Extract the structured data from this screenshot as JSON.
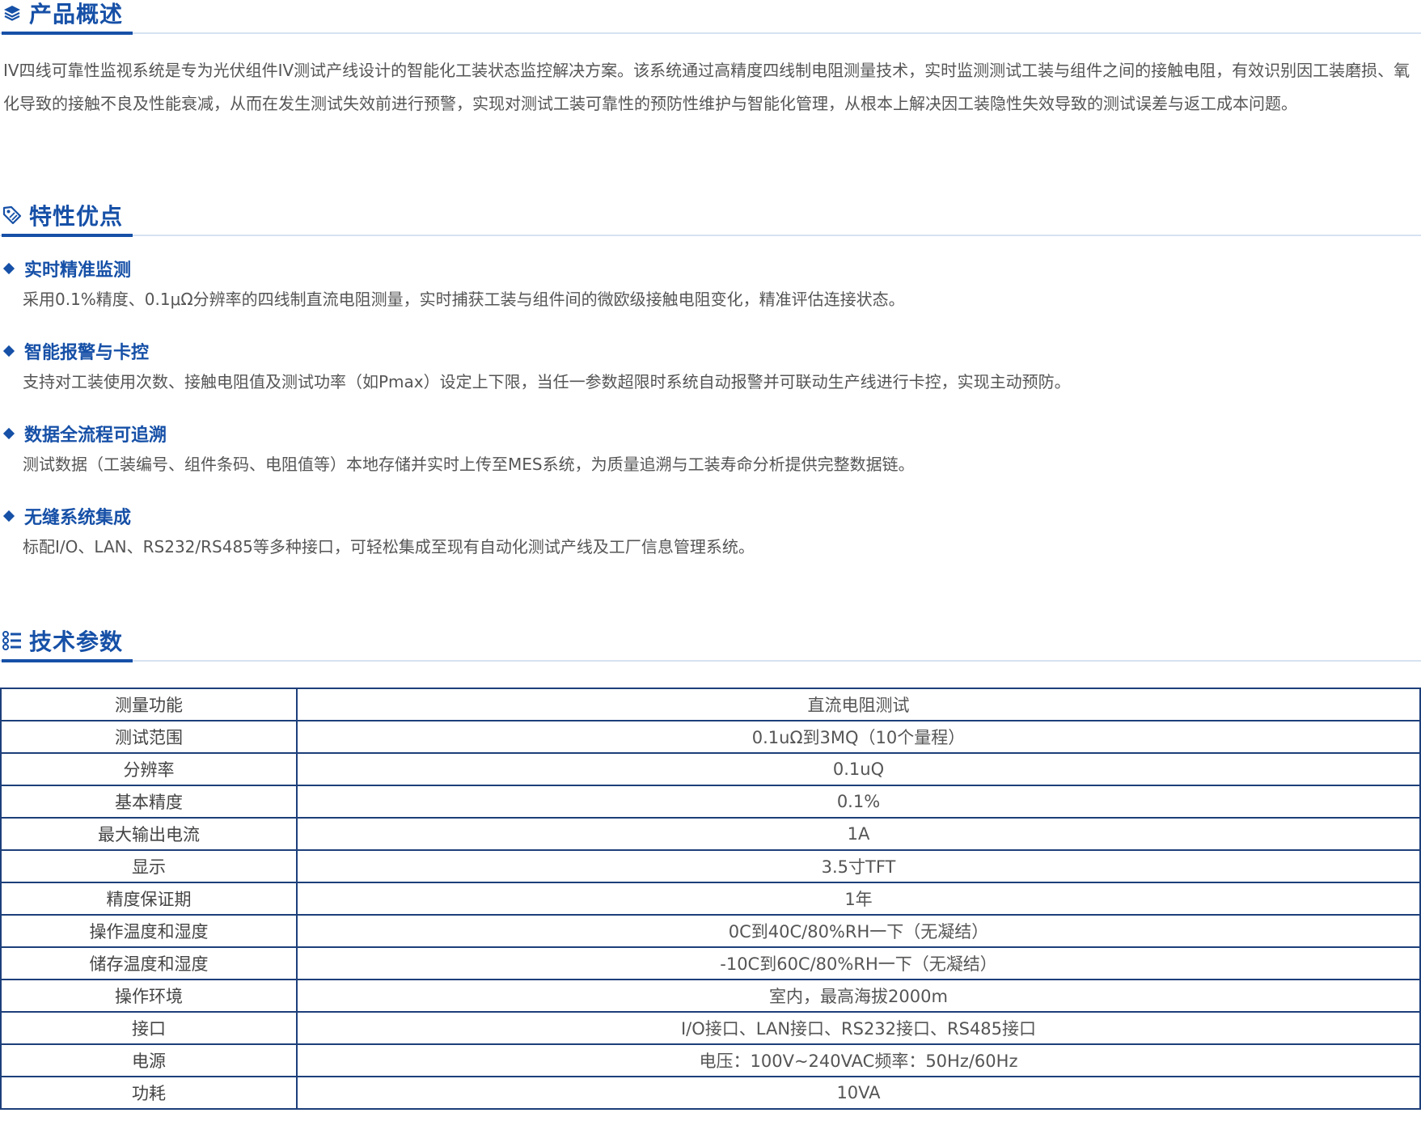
{
  "overview": {
    "title": "产品概述",
    "icon": "layers-icon",
    "text": "IV四线可靠性监视系统是专为光伏组件IV测试产线设计的智能化工装状态监控解决方案。该系统通过高精度四线制电阻测量技术，实时监测测试工装与组件之间的接触电阻，有效识别因工装磨损、氧化导致的接触不良及性能衰减，从而在发生测试失效前进行预警，实现对测试工装可靠性的预防性维护与智能化管理，从根本上解决因工装隐性失效导致的测试误差与返工成本问题。"
  },
  "features": {
    "title": "特性优点",
    "icon": "tag-icon",
    "items": [
      {
        "name": "实时精准监测",
        "desc": "采用0.1%精度、0.1μΩ分辨率的四线制直流电阻测量，实时捕获工装与组件间的微欧级接触电阻变化，精准评估连接状态。"
      },
      {
        "name": "智能报警与卡控",
        "desc": "支持对工装使用次数、接触电阻值及测试功率（如Pmax）设定上下限，当任一参数超限时系统自动报警并可联动生产线进行卡控，实现主动预防。"
      },
      {
        "name": "数据全流程可追溯",
        "desc": "测试数据（工装编号、组件条码、电阻值等）本地存储并实时上传至MES系统，为质量追溯与工装寿命分析提供完整数据链。"
      },
      {
        "name": "无缝系统集成",
        "desc": "标配I/O、LAN、RS232/RS485等多种接口，可轻松集成至现有自动化测试产线及工厂信息管理系统。"
      }
    ]
  },
  "specs": {
    "title": "技术参数",
    "icon": "list-icon",
    "rows": [
      {
        "label": "测量功能",
        "value": "直流电阻测试"
      },
      {
        "label": "测试范围",
        "value": "0.1uΩ到3MQ（10个量程）"
      },
      {
        "label": "分辨率",
        "value": "0.1uQ"
      },
      {
        "label": "基本精度",
        "value": "0.1%"
      },
      {
        "label": "最大输出电流",
        "value": "1A"
      },
      {
        "label": "显示",
        "value": "3.5寸TFT"
      },
      {
        "label": "精度保证期",
        "value": "1年"
      },
      {
        "label": "操作温度和湿度",
        "value": "0C到40C/80%RH一下（无凝结）"
      },
      {
        "label": "储存温度和湿度",
        "value": "-10C到60C/80%RH一下（无凝结）"
      },
      {
        "label": "操作环境",
        "value": "室内，最高海拔2000m"
      },
      {
        "label": "接口",
        "value": "I/O接口、LAN接口、RS232接口、RS485接口"
      },
      {
        "label": "电源",
        "value": "电压：100V~240VAC频率：50Hz/60Hz"
      },
      {
        "label": "功耗",
        "value": "10VA"
      }
    ]
  },
  "colors": {
    "accent": "#1650a7",
    "divider": "#d6e2f2",
    "table_border": "#1d3f7a",
    "body_text": "#555555"
  }
}
